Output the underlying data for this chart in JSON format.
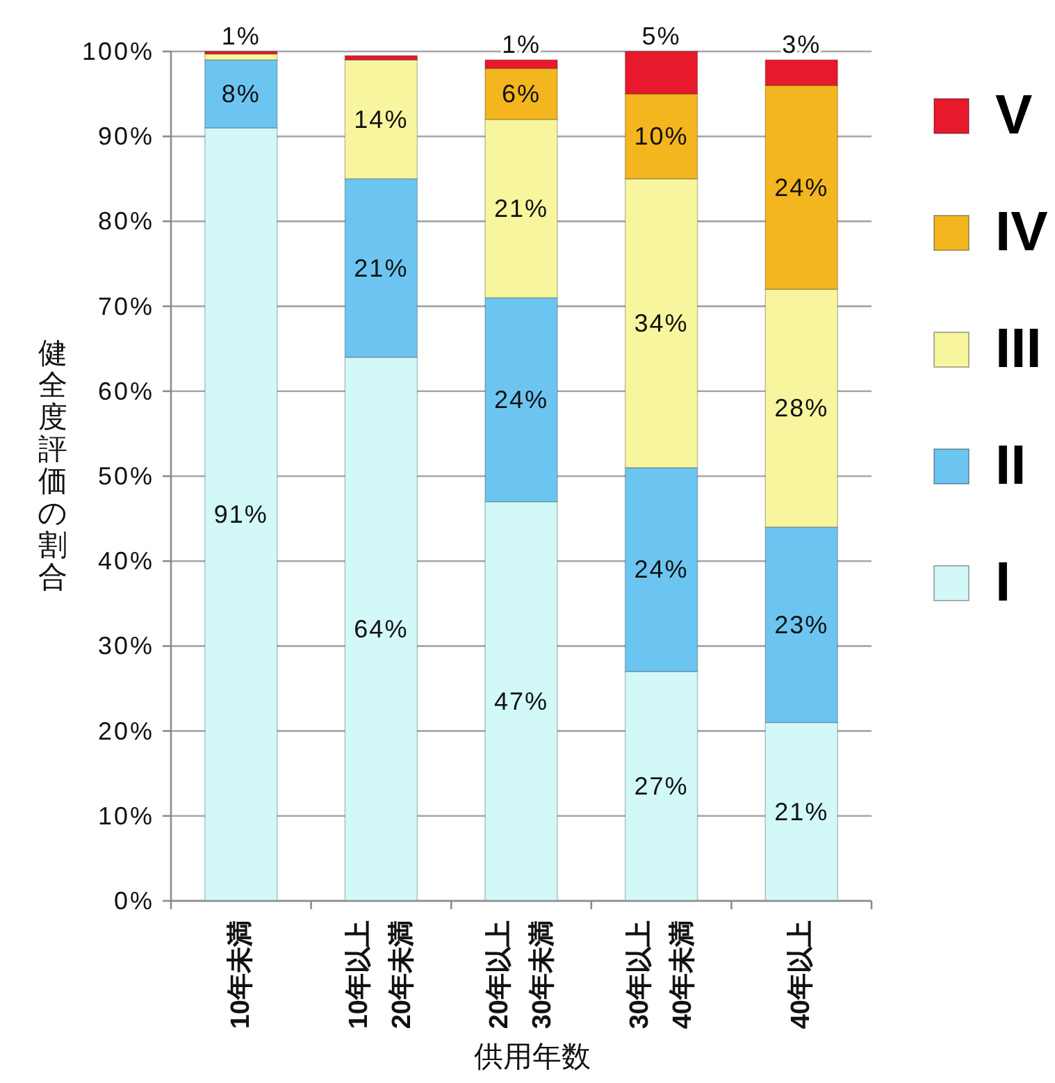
{
  "chart_data": {
    "type": "bar",
    "stacked": true,
    "xlabel": "供用年数",
    "ylabel": "健全度評価の割合",
    "categories": [
      "10年未満",
      "10年以上\n20年未満",
      "20年以上\n30年未満",
      "30年以上\n40年未満",
      "40年以上"
    ],
    "series": [
      {
        "name": "I",
        "color": "#d2f8f8",
        "values": [
          91,
          64,
          47,
          27,
          21
        ],
        "value_labels": [
          "91%",
          "64%",
          "47%",
          "27%",
          "21%"
        ]
      },
      {
        "name": "II",
        "color": "#6cc5f1",
        "values": [
          8,
          21,
          24,
          24,
          23
        ],
        "value_labels": [
          "8%",
          "21%",
          "24%",
          "24%",
          "23%"
        ]
      },
      {
        "name": "III",
        "color": "#f7f59e",
        "values": [
          0.7,
          14,
          21,
          34,
          28
        ],
        "value_labels": [
          "1%",
          "14%",
          "21%",
          "34%",
          "28%"
        ]
      },
      {
        "name": "IV",
        "color": "#f4b61e",
        "values": [
          null,
          null,
          6,
          10,
          24
        ],
        "value_labels": [
          null,
          null,
          "6%",
          "10%",
          "24%"
        ]
      },
      {
        "name": "V",
        "color": "#e8192c",
        "values": [
          0.3,
          0.5,
          1,
          5,
          3
        ],
        "value_labels": [
          null,
          null,
          "1%",
          "5%",
          "3%"
        ]
      }
    ],
    "ylim": [
      0,
      100
    ],
    "yticks": [
      {
        "value": 0,
        "label": "0%"
      },
      {
        "value": 10,
        "label": "10%"
      },
      {
        "value": 20,
        "label": "20%"
      },
      {
        "value": 30,
        "label": "30%"
      },
      {
        "value": 40,
        "label": "40%"
      },
      {
        "value": 50,
        "label": "50%"
      },
      {
        "value": 60,
        "label": "60%"
      },
      {
        "value": 70,
        "label": "70%"
      },
      {
        "value": 80,
        "label": "80%"
      },
      {
        "value": 90,
        "label": "90%"
      },
      {
        "value": 100,
        "label": "100%"
      }
    ],
    "grid": "y",
    "legend": "right"
  }
}
